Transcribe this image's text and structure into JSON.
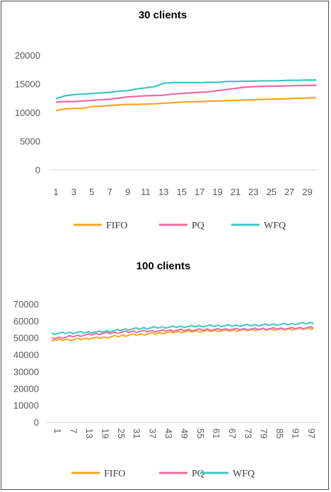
{
  "chart_data": [
    {
      "type": "line",
      "title": "30 clients",
      "xlabel": "",
      "ylabel": "",
      "ylim": [
        0,
        20000
      ],
      "yticks": [
        0,
        5000,
        10000,
        15000,
        20000
      ],
      "x": [
        1,
        2,
        3,
        4,
        5,
        6,
        7,
        8,
        9,
        10,
        11,
        12,
        13,
        14,
        15,
        16,
        17,
        18,
        19,
        20,
        21,
        22,
        23,
        24,
        25,
        26,
        27,
        28,
        29,
        30
      ],
      "x_tick_labels": [
        "1",
        "3",
        "5",
        "7",
        "9",
        "11",
        "13",
        "15",
        "17",
        "19",
        "21",
        "23",
        "25",
        "27",
        "29"
      ],
      "grid": false,
      "legend_position": "bottom",
      "series": [
        {
          "name": "FIFO",
          "color": "#f5a623",
          "values": [
            10300,
            10600,
            10700,
            10700,
            11000,
            11100,
            11200,
            11300,
            11400,
            11400,
            11450,
            11500,
            11600,
            11700,
            11800,
            11850,
            11900,
            11950,
            12000,
            12050,
            12100,
            12150,
            12200,
            12250,
            12300,
            12350,
            12400,
            12450,
            12500,
            12600
          ]
        },
        {
          "name": "PQ",
          "color": "#f06aa0",
          "values": [
            11800,
            11900,
            11900,
            12000,
            12100,
            12200,
            12300,
            12500,
            12700,
            12800,
            12900,
            12950,
            13000,
            13200,
            13300,
            13400,
            13500,
            13600,
            13800,
            14000,
            14200,
            14400,
            14500,
            14550,
            14600,
            14600,
            14650,
            14700,
            14700,
            14750
          ]
        },
        {
          "name": "WFQ",
          "color": "#3cc8c0",
          "values": [
            12400,
            12900,
            13100,
            13200,
            13300,
            13400,
            13500,
            13700,
            13800,
            14100,
            14300,
            14500,
            15100,
            15200,
            15200,
            15200,
            15200,
            15250,
            15250,
            15400,
            15400,
            15450,
            15450,
            15500,
            15500,
            15550,
            15600,
            15600,
            15650,
            15650
          ]
        }
      ]
    },
    {
      "type": "line",
      "title": "100 clients",
      "xlabel": "",
      "ylabel": "",
      "ylim": [
        0,
        70000
      ],
      "yticks": [
        0,
        10000,
        20000,
        30000,
        40000,
        50000,
        60000,
        70000
      ],
      "x_tick_labels": [
        "1",
        "7",
        "13",
        "19",
        "25",
        "31",
        "37",
        "43",
        "49",
        "55",
        "61",
        "67",
        "73",
        "79",
        "85",
        "91",
        "97"
      ],
      "x_tick_values": [
        1,
        7,
        13,
        19,
        25,
        31,
        37,
        43,
        49,
        55,
        61,
        67,
        73,
        79,
        85,
        91,
        97
      ],
      "x_count": 100,
      "grid": false,
      "legend_position": "bottom",
      "series": [
        {
          "name": "FIFO",
          "color": "#f5a623",
          "keypoints": [
            [
              1,
              48500
            ],
            [
              10,
              49000
            ],
            [
              20,
              50000
            ],
            [
              30,
              51500
            ],
            [
              40,
              52500
            ],
            [
              50,
              53500
            ],
            [
              60,
              54000
            ],
            [
              70,
              54300
            ],
            [
              80,
              54800
            ],
            [
              90,
              55000
            ],
            [
              100,
              55500
            ]
          ]
        },
        {
          "name": "PQ",
          "color": "#f06aa0",
          "keypoints": [
            [
              1,
              49500
            ],
            [
              10,
              51000
            ],
            [
              20,
              52500
            ],
            [
              30,
              53500
            ],
            [
              40,
              54000
            ],
            [
              50,
              54500
            ],
            [
              60,
              54800
            ],
            [
              70,
              55000
            ],
            [
              80,
              55200
            ],
            [
              90,
              55500
            ],
            [
              100,
              56000
            ]
          ]
        },
        {
          "name": "WFQ",
          "color": "#3cc8c0",
          "keypoints": [
            [
              1,
              52500
            ],
            [
              10,
              53000
            ],
            [
              20,
              53500
            ],
            [
              30,
              55000
            ],
            [
              40,
              56000
            ],
            [
              50,
              56500
            ],
            [
              60,
              57000
            ],
            [
              70,
              57200
            ],
            [
              80,
              57500
            ],
            [
              90,
              58000
            ],
            [
              100,
              58800
            ]
          ]
        }
      ]
    }
  ]
}
